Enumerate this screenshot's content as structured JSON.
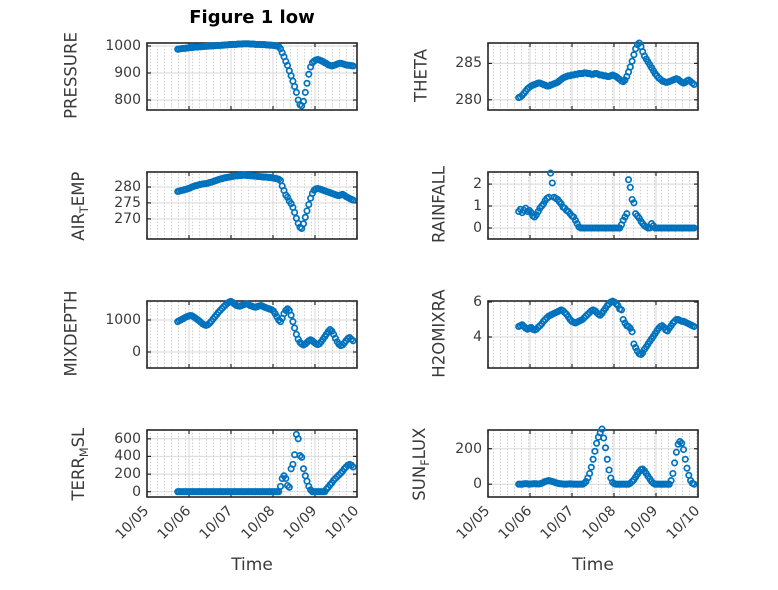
{
  "title": "Figure 1 low",
  "xlabel": "Time",
  "colors": {
    "marker": "#0072BD",
    "grid": "#d9d9d9",
    "minor_dot": "#c6c6c6",
    "axis": "#262626",
    "text": "#3a3a3a",
    "title": "#000000"
  },
  "marker": {
    "shape": "open-circle",
    "radius": 2.7,
    "stroke_width": 1.7
  },
  "x_axis": {
    "label": "Time",
    "xlim": [
      0,
      5
    ],
    "xticks": [
      0,
      1,
      2,
      3,
      4,
      5
    ],
    "tick_labels": [
      "10/05",
      "10/06",
      "10/07",
      "10/08",
      "10/09",
      "10/10"
    ]
  },
  "chart_data": [
    {
      "type": "scatter",
      "name": "PRESSURE",
      "row": 0,
      "col": 0,
      "ylabel": "PRESSURE",
      "ylabel_parts": [
        [
          "PRESSURE",
          false
        ]
      ],
      "ylim": [
        763,
        1011
      ],
      "yticks": [
        800,
        900,
        1000
      ],
      "ytick_labels": [
        "800",
        "900",
        "1000"
      ],
      "x_start": 0.73,
      "x_step": 0.0422,
      "values": [
        988,
        989,
        990,
        991,
        991,
        992,
        993,
        994,
        994,
        995,
        996,
        996,
        997,
        997,
        998,
        998,
        999,
        999,
        1000,
        1000,
        1001,
        1001,
        1002,
        1002,
        1002,
        1003,
        1003,
        1004,
        1004,
        1005,
        1005,
        1006,
        1006,
        1006,
        1007,
        1007,
        1007,
        1008,
        1008,
        1008,
        1008,
        1007,
        1007,
        1007,
        1006,
        1006,
        1006,
        1005,
        1005,
        1005,
        1004,
        1004,
        1003,
        1003,
        1002,
        1001,
        1000,
        998,
        990,
        975,
        960,
        943,
        928,
        908,
        890,
        870,
        850,
        828,
        800,
        783,
        778,
        795,
        828,
        862,
        895,
        922,
        938,
        944,
        948,
        950,
        948,
        945,
        942,
        938,
        935,
        930,
        928,
        926,
        928,
        930,
        933,
        935,
        936,
        934,
        932,
        930,
        929,
        928,
        927,
        926
      ]
    },
    {
      "type": "scatter",
      "name": "THETA",
      "row": 0,
      "col": 1,
      "ylabel": "THETA",
      "ylabel_parts": [
        [
          "THETA",
          false
        ]
      ],
      "ylim": [
        278.6,
        287.8
      ],
      "yticks": [
        280,
        285
      ],
      "ytick_labels": [
        "280",
        "285"
      ],
      "x_start": 0.73,
      "x_step": 0.0422,
      "values": [
        280.3,
        280.4,
        280.6,
        280.9,
        281.2,
        281.5,
        281.7,
        281.9,
        282.0,
        282.1,
        282.2,
        282.3,
        282.3,
        282.2,
        282.1,
        282.0,
        281.9,
        281.9,
        282.0,
        282.1,
        282.2,
        282.3,
        282.4,
        282.6,
        282.8,
        283.0,
        283.1,
        283.2,
        283.3,
        283.3,
        283.4,
        283.4,
        283.5,
        283.5,
        283.6,
        283.6,
        283.6,
        283.7,
        283.7,
        283.6,
        283.6,
        283.5,
        283.5,
        283.6,
        283.6,
        283.5,
        283.4,
        283.4,
        283.3,
        283.3,
        283.2,
        283.2,
        283.3,
        283.4,
        283.3,
        283.2,
        283.0,
        282.8,
        282.6,
        282.5,
        282.7,
        283.2,
        283.8,
        284.5,
        285.3,
        286.2,
        287.0,
        287.6,
        287.8,
        287.3,
        286.6,
        286.0,
        285.6,
        285.2,
        284.8,
        284.4,
        284.0,
        283.6,
        283.3,
        283.0,
        282.8,
        282.6,
        282.5,
        282.4,
        282.4,
        282.5,
        282.6,
        282.7,
        282.8,
        282.9,
        282.8,
        282.6,
        282.4,
        282.3,
        282.4,
        282.6,
        282.7,
        282.5,
        282.3,
        282.1
      ]
    },
    {
      "type": "scatter",
      "name": "AIR_TEMP",
      "row": 1,
      "col": 0,
      "ylabel": "AIR_TEMP",
      "ylabel_parts": [
        [
          "AIR",
          false
        ],
        [
          "T",
          true
        ],
        [
          "EMP",
          false
        ]
      ],
      "ylim": [
        263.7,
        284.7
      ],
      "yticks": [
        270,
        275,
        280
      ],
      "ytick_labels": [
        "270",
        "275",
        "280"
      ],
      "x_start": 0.73,
      "x_step": 0.0422,
      "values": [
        278.6,
        278.7,
        278.9,
        279.0,
        279.2,
        279.3,
        279.5,
        279.7,
        280.0,
        280.2,
        280.4,
        280.5,
        280.7,
        280.8,
        280.9,
        281.0,
        281.1,
        281.2,
        281.4,
        281.5,
        281.7,
        281.9,
        282.1,
        282.3,
        282.5,
        282.6,
        282.8,
        282.9,
        283.0,
        283.1,
        283.2,
        283.3,
        283.4,
        283.5,
        283.5,
        283.6,
        283.6,
        283.7,
        283.7,
        283.6,
        283.6,
        283.5,
        283.5,
        283.4,
        283.4,
        283.3,
        283.3,
        283.2,
        283.2,
        283.1,
        283.1,
        283.0,
        283.0,
        282.9,
        282.8,
        282.7,
        282.6,
        282.4,
        282.0,
        280.3,
        278.9,
        277.5,
        276.8,
        275.6,
        274.8,
        273.6,
        272.0,
        270.2,
        268.6,
        267.4,
        267.0,
        268.5,
        270.5,
        272.5,
        274.5,
        276.5,
        278.0,
        279.0,
        279.4,
        279.5,
        279.4,
        279.2,
        279.0,
        278.8,
        278.6,
        278.4,
        278.2,
        278.0,
        277.8,
        277.6,
        277.4,
        277.3,
        277.5,
        277.7,
        277.4,
        277.0,
        276.7,
        276.4,
        276.1,
        275.9
      ]
    },
    {
      "type": "scatter",
      "name": "RAINFALL",
      "row": 1,
      "col": 1,
      "ylabel": "RAINFALL",
      "ylabel_parts": [
        [
          "RAINFALL",
          false
        ]
      ],
      "ylim": [
        -0.5,
        2.55
      ],
      "yticks": [
        0,
        1,
        2
      ],
      "ytick_labels": [
        "0",
        "1",
        "2"
      ],
      "x_start": 0.73,
      "x_step": 0.0422,
      "values": [
        0.75,
        0.85,
        0.7,
        0.8,
        0.9,
        0.75,
        0.8,
        0.7,
        0.55,
        0.5,
        0.6,
        0.75,
        0.9,
        1.0,
        1.1,
        1.25,
        1.35,
        1.4,
        2.5,
        2.05,
        1.4,
        1.35,
        1.3,
        1.2,
        1.1,
        0.95,
        0.9,
        0.8,
        0.75,
        0.65,
        0.55,
        0.5,
        0.35,
        0.2,
        0.05,
        0,
        0,
        0,
        0,
        0,
        0,
        0,
        0,
        0,
        0,
        0,
        0,
        0,
        0,
        0,
        0,
        0,
        0,
        0,
        0,
        0,
        0,
        0,
        0.15,
        0.35,
        0.5,
        0.65,
        2.2,
        1.85,
        1.3,
        1.15,
        0.65,
        0.55,
        0.45,
        0.3,
        0.2,
        0.1,
        0.05,
        0,
        0,
        0.2,
        0.1,
        0,
        0,
        0,
        0,
        0,
        0,
        0,
        0,
        0,
        0,
        0,
        0,
        0,
        0,
        0,
        0,
        0,
        0,
        0,
        0,
        0,
        0,
        0
      ]
    },
    {
      "type": "scatter",
      "name": "MIXDEPTH",
      "row": 2,
      "col": 0,
      "ylabel": "MIXDEPTH",
      "ylabel_parts": [
        [
          "MIXDEPTH",
          false
        ]
      ],
      "ylim": [
        -500,
        1594
      ],
      "yticks": [
        0,
        1000
      ],
      "ytick_labels": [
        "0",
        "1000"
      ],
      "x_start": 0.73,
      "x_step": 0.0422,
      "values": [
        950,
        980,
        1010,
        1040,
        1070,
        1100,
        1120,
        1140,
        1130,
        1100,
        1060,
        1020,
        980,
        930,
        880,
        850,
        830,
        850,
        900,
        960,
        1030,
        1100,
        1170,
        1240,
        1300,
        1360,
        1420,
        1470,
        1520,
        1560,
        1580,
        1550,
        1500,
        1460,
        1440,
        1430,
        1450,
        1470,
        1490,
        1500,
        1480,
        1450,
        1430,
        1410,
        1400,
        1420,
        1440,
        1450,
        1430,
        1400,
        1380,
        1360,
        1340,
        1320,
        1280,
        1200,
        1100,
        1000,
        950,
        1050,
        1200,
        1300,
        1350,
        1300,
        1150,
        950,
        750,
        550,
        400,
        300,
        250,
        220,
        250,
        300,
        350,
        380,
        350,
        300,
        260,
        230,
        260,
        320,
        400,
        480,
        560,
        640,
        700,
        650,
        550,
        430,
        320,
        240,
        200,
        220,
        280,
        350,
        420,
        450,
        400,
        350
      ]
    },
    {
      "type": "scatter",
      "name": "H2OMIXRA",
      "row": 2,
      "col": 1,
      "ylabel": "H2OMIXRA",
      "ylabel_parts": [
        [
          "H2OMIXRA",
          false
        ]
      ],
      "ylim": [
        2.23,
        6.06
      ],
      "yticks": [
        4,
        6
      ],
      "ytick_labels": [
        "4",
        "6"
      ],
      "x_start": 0.73,
      "x_step": 0.0422,
      "values": [
        4.6,
        4.65,
        4.7,
        4.6,
        4.5,
        4.45,
        4.5,
        4.55,
        4.45,
        4.4,
        4.45,
        4.55,
        4.65,
        4.75,
        4.9,
        5.0,
        5.1,
        5.2,
        5.25,
        5.3,
        5.35,
        5.4,
        5.45,
        5.5,
        5.55,
        5.5,
        5.4,
        5.3,
        5.15,
        5.0,
        4.9,
        4.85,
        4.8,
        4.85,
        4.9,
        4.95,
        5.0,
        5.1,
        5.2,
        5.3,
        5.4,
        5.5,
        5.55,
        5.5,
        5.4,
        5.3,
        5.25,
        5.35,
        5.5,
        5.65,
        5.8,
        5.9,
        6.0,
        6.05,
        6.0,
        5.9,
        5.8,
        5.6,
        5.55,
        5.0,
        4.8,
        4.65,
        4.6,
        4.5,
        4.3,
        3.6,
        3.4,
        3.2,
        3.05,
        3.0,
        3.1,
        3.3,
        3.45,
        3.6,
        3.75,
        3.9,
        4.05,
        4.2,
        4.35,
        4.5,
        4.6,
        4.65,
        4.55,
        4.4,
        4.35,
        4.5,
        4.65,
        4.8,
        4.9,
        5.0,
        5.0,
        4.95,
        4.9,
        4.9,
        4.85,
        4.8,
        4.75,
        4.7,
        4.65,
        4.6
      ]
    },
    {
      "type": "scatter",
      "name": "TERR_MSL",
      "row": 3,
      "col": 0,
      "ylabel": "TERR_MSL",
      "ylabel_parts": [
        [
          "TERR",
          false
        ],
        [
          "M",
          true
        ],
        [
          "SL",
          false
        ]
      ],
      "ylim": [
        -60,
        700
      ],
      "yticks": [
        0,
        200,
        400,
        600
      ],
      "ytick_labels": [
        "0",
        "200",
        "400",
        "600"
      ],
      "x_start": 0.73,
      "x_step": 0.0422,
      "values": [
        0,
        0,
        0,
        0,
        0,
        0,
        0,
        0,
        0,
        0,
        0,
        0,
        0,
        0,
        0,
        0,
        0,
        0,
        0,
        0,
        0,
        0,
        0,
        0,
        0,
        0,
        0,
        0,
        0,
        0,
        0,
        0,
        0,
        0,
        0,
        0,
        0,
        0,
        0,
        0,
        0,
        0,
        0,
        0,
        0,
        0,
        0,
        0,
        0,
        0,
        0,
        0,
        0,
        0,
        0,
        0,
        0,
        0,
        60,
        150,
        180,
        150,
        70,
        50,
        260,
        310,
        420,
        650,
        600,
        410,
        390,
        260,
        180,
        120,
        60,
        20,
        0,
        0,
        0,
        0,
        0,
        0,
        0,
        0,
        30,
        50,
        80,
        100,
        130,
        150,
        170,
        190,
        210,
        230,
        260,
        280,
        300,
        310,
        300,
        280
      ]
    },
    {
      "type": "scatter",
      "name": "SUN_FLUX",
      "row": 3,
      "col": 1,
      "ylabel": "SUN_FLUX",
      "ylabel_parts": [
        [
          "SUN",
          false
        ],
        [
          "F",
          true
        ],
        [
          "LUX",
          false
        ]
      ],
      "ylim": [
        -72,
        305
      ],
      "yticks": [
        0,
        200
      ],
      "ytick_labels": [
        "0",
        "200"
      ],
      "x_start": 0.73,
      "x_step": 0.0422,
      "values": [
        0,
        0,
        0,
        2,
        3,
        2,
        0,
        1,
        2,
        3,
        2,
        1,
        2,
        5,
        10,
        15,
        18,
        20,
        18,
        15,
        12,
        8,
        5,
        3,
        2,
        1,
        0,
        0,
        1,
        2,
        1,
        0,
        0,
        0,
        0,
        0,
        0,
        5,
        15,
        35,
        60,
        95,
        140,
        185,
        230,
        265,
        290,
        310,
        260,
        205,
        140,
        80,
        35,
        10,
        2,
        0,
        0,
        0,
        0,
        0,
        0,
        0,
        0,
        5,
        15,
        25,
        40,
        55,
        70,
        82,
        85,
        75,
        60,
        45,
        30,
        15,
        5,
        0,
        0,
        0,
        0,
        0,
        0,
        0,
        0,
        0,
        20,
        60,
        120,
        180,
        225,
        240,
        230,
        195,
        140,
        90,
        50,
        20,
        5,
        0
      ]
    }
  ]
}
